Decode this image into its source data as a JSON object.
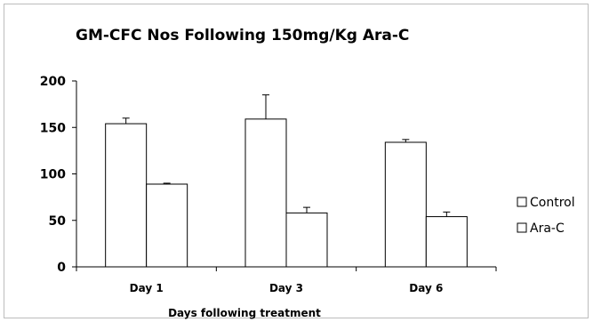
{
  "chart_data": {
    "type": "bar",
    "title": "GM-CFC Nos Following 150mg/Kg  Ara-C",
    "xlabel": "Days following  treatment",
    "ylabel": "",
    "categories": [
      "Day 1",
      "Day 3",
      "Day 6"
    ],
    "ylim": [
      0,
      200
    ],
    "yticks": [
      0,
      50,
      100,
      150,
      200
    ],
    "series": [
      {
        "name": "Control",
        "values": [
          154,
          159,
          134
        ],
        "errors": [
          6,
          26,
          3
        ]
      },
      {
        "name": "Ara-C",
        "values": [
          89,
          58,
          54
        ],
        "errors": [
          1,
          6,
          5
        ]
      }
    ],
    "grid": false,
    "legend_position": "right",
    "colors": {
      "bar_fill": "#ffffff",
      "bar_stroke": "#000000",
      "frame": "#bcbcbc"
    }
  }
}
